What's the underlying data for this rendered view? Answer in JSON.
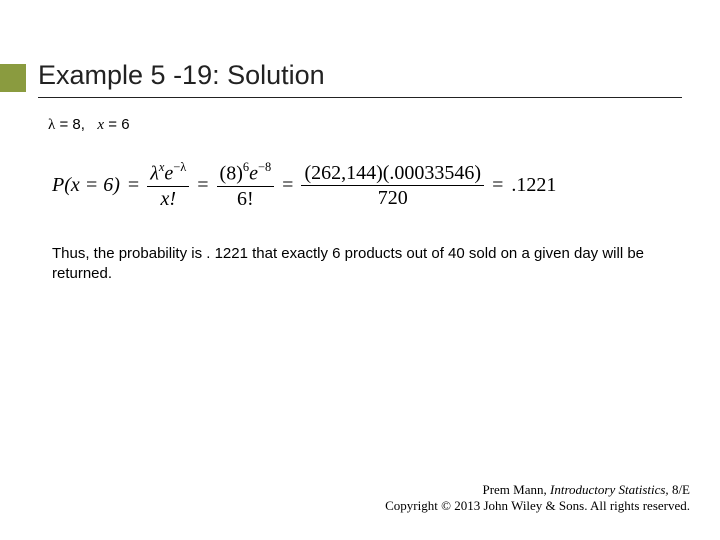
{
  "title": "Example 5 -19: Solution",
  "params": {
    "lambda_sym": "λ",
    "lambda_val": "8",
    "x_sym": "x",
    "x_val": "6"
  },
  "formula": {
    "lhs": "P(x = 6)",
    "term1_num": "λ",
    "term1_num_sup": "x",
    "term1_num_e": "e",
    "term1_num_e_sup": "−λ",
    "term1_den": "x!",
    "term2_num_base": "(8)",
    "term2_num_sup": "6",
    "term2_num_e": "e",
    "term2_num_e_sup": "−8",
    "term2_den": "6!",
    "term3_num": "(262,144)(.00033546)",
    "term3_den": "720",
    "result": ".1221"
  },
  "conclusion": "Thus, the probability is . 1221 that exactly 6 products out of 40 sold on a given day will be returned.",
  "footer": {
    "author": "Prem Mann, ",
    "book": "Introductory Statistics, ",
    "edition": "8/E",
    "copyright": "Copyright © 2013 John Wiley & Sons. All rights reserved."
  },
  "colors": {
    "accent": "#8a9b3f",
    "text": "#000000",
    "bg": "#ffffff"
  }
}
